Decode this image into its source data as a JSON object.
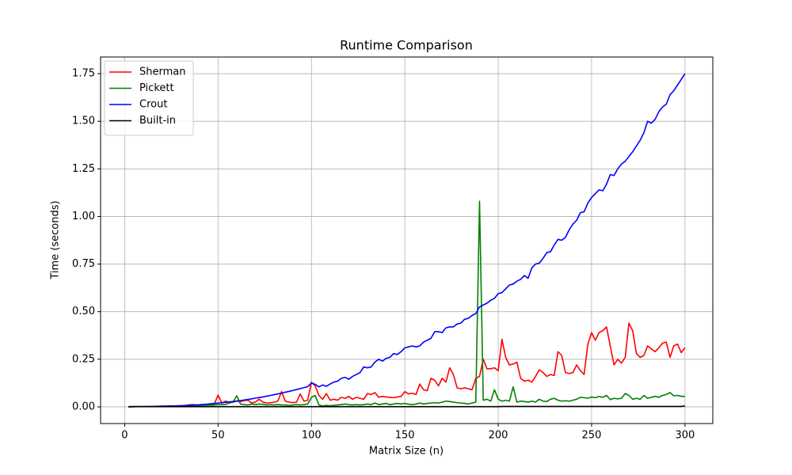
{
  "chart_data": {
    "type": "line",
    "title": "Runtime Comparison",
    "x_label": "Matrix Size (n)",
    "y_label": "Time (seconds)",
    "x": [
      2,
      4,
      6,
      8,
      10,
      12,
      14,
      16,
      18,
      20,
      22,
      24,
      26,
      28,
      30,
      32,
      34,
      36,
      38,
      40,
      42,
      44,
      46,
      48,
      50,
      52,
      54,
      56,
      58,
      60,
      62,
      64,
      66,
      68,
      70,
      72,
      74,
      76,
      78,
      80,
      82,
      84,
      86,
      88,
      90,
      92,
      94,
      96,
      98,
      100,
      102,
      104,
      106,
      108,
      110,
      112,
      114,
      116,
      118,
      120,
      122,
      124,
      126,
      128,
      130,
      132,
      134,
      136,
      138,
      140,
      142,
      144,
      146,
      148,
      150,
      152,
      154,
      156,
      158,
      160,
      162,
      164,
      166,
      168,
      170,
      172,
      174,
      176,
      178,
      180,
      182,
      184,
      186,
      188,
      190,
      192,
      194,
      196,
      198,
      200,
      202,
      204,
      206,
      208,
      210,
      212,
      214,
      216,
      218,
      220,
      222,
      224,
      226,
      228,
      230,
      232,
      234,
      236,
      238,
      240,
      242,
      244,
      246,
      248,
      250,
      252,
      254,
      256,
      258,
      260,
      262,
      264,
      266,
      268,
      270,
      272,
      274,
      276,
      278,
      280,
      282,
      284,
      286,
      288,
      290,
      292,
      294,
      296,
      298,
      300
    ],
    "series": [
      {
        "name": "Sherman",
        "color": "#ff0000",
        "values": [
          0.001,
          0.001,
          0.002,
          0.001,
          0.002,
          0.002,
          0.002,
          0.003,
          0.003,
          0.004,
          0.004,
          0.005,
          0.005,
          0.005,
          0.006,
          0.007,
          0.01,
          0.012,
          0.011,
          0.008,
          0.009,
          0.012,
          0.013,
          0.015,
          0.062,
          0.02,
          0.03,
          0.025,
          0.025,
          0.03,
          0.028,
          0.033,
          0.035,
          0.02,
          0.025,
          0.04,
          0.025,
          0.02,
          0.022,
          0.024,
          0.03,
          0.08,
          0.03,
          0.025,
          0.022,
          0.025,
          0.068,
          0.03,
          0.035,
          0.13,
          0.11,
          0.06,
          0.04,
          0.07,
          0.035,
          0.04,
          0.035,
          0.05,
          0.045,
          0.055,
          0.04,
          0.05,
          0.045,
          0.04,
          0.07,
          0.065,
          0.075,
          0.05,
          0.055,
          0.052,
          0.05,
          0.048,
          0.052,
          0.055,
          0.08,
          0.068,
          0.072,
          0.065,
          0.12,
          0.09,
          0.085,
          0.15,
          0.14,
          0.11,
          0.15,
          0.13,
          0.205,
          0.17,
          0.1,
          0.095,
          0.1,
          0.095,
          0.09,
          0.15,
          0.16,
          0.25,
          0.2,
          0.2,
          0.205,
          0.19,
          0.355,
          0.26,
          0.22,
          0.225,
          0.235,
          0.15,
          0.135,
          0.14,
          0.13,
          0.16,
          0.195,
          0.18,
          0.16,
          0.17,
          0.165,
          0.29,
          0.27,
          0.18,
          0.175,
          0.18,
          0.22,
          0.19,
          0.17,
          0.33,
          0.39,
          0.35,
          0.39,
          0.4,
          0.42,
          0.32,
          0.22,
          0.25,
          0.23,
          0.26,
          0.44,
          0.4,
          0.28,
          0.26,
          0.27,
          0.32,
          0.305,
          0.29,
          0.31,
          0.335,
          0.34,
          0.26,
          0.32,
          0.33,
          0.285,
          0.31
        ]
      },
      {
        "name": "Pickett",
        "color": "#008000",
        "values": [
          0.0,
          0.001,
          0.001,
          0.001,
          0.001,
          0.001,
          0.002,
          0.002,
          0.003,
          0.003,
          0.003,
          0.003,
          0.004,
          0.004,
          0.005,
          0.005,
          0.006,
          0.006,
          0.007,
          0.007,
          0.008,
          0.008,
          0.009,
          0.01,
          0.012,
          0.012,
          0.013,
          0.02,
          0.025,
          0.058,
          0.015,
          0.012,
          0.01,
          0.015,
          0.012,
          0.015,
          0.013,
          0.01,
          0.012,
          0.01,
          0.012,
          0.01,
          0.01,
          0.008,
          0.01,
          0.012,
          0.01,
          0.012,
          0.015,
          0.05,
          0.06,
          0.01,
          0.005,
          0.008,
          0.006,
          0.008,
          0.01,
          0.012,
          0.015,
          0.012,
          0.01,
          0.012,
          0.01,
          0.012,
          0.015,
          0.012,
          0.02,
          0.012,
          0.015,
          0.018,
          0.012,
          0.015,
          0.018,
          0.015,
          0.018,
          0.014,
          0.012,
          0.015,
          0.02,
          0.015,
          0.018,
          0.02,
          0.022,
          0.02,
          0.025,
          0.03,
          0.028,
          0.025,
          0.022,
          0.02,
          0.018,
          0.015,
          0.02,
          0.025,
          1.08,
          0.035,
          0.04,
          0.03,
          0.09,
          0.04,
          0.03,
          0.035,
          0.03,
          0.105,
          0.025,
          0.03,
          0.028,
          0.025,
          0.03,
          0.025,
          0.04,
          0.03,
          0.028,
          0.04,
          0.045,
          0.035,
          0.03,
          0.032,
          0.03,
          0.035,
          0.04,
          0.05,
          0.048,
          0.045,
          0.052,
          0.048,
          0.055,
          0.05,
          0.06,
          0.038,
          0.045,
          0.042,
          0.045,
          0.07,
          0.06,
          0.04,
          0.045,
          0.04,
          0.06,
          0.045,
          0.05,
          0.055,
          0.05,
          0.06,
          0.065,
          0.075,
          0.058,
          0.06,
          0.055,
          0.055
        ]
      },
      {
        "name": "Crout",
        "color": "#0000ff",
        "values": [
          0.0,
          0.0,
          0.001,
          0.001,
          0.001,
          0.001,
          0.002,
          0.002,
          0.002,
          0.003,
          0.003,
          0.004,
          0.004,
          0.005,
          0.006,
          0.007,
          0.008,
          0.009,
          0.01,
          0.011,
          0.013,
          0.014,
          0.016,
          0.018,
          0.02,
          0.022,
          0.024,
          0.026,
          0.028,
          0.031,
          0.033,
          0.036,
          0.039,
          0.042,
          0.046,
          0.049,
          0.052,
          0.056,
          0.06,
          0.064,
          0.068,
          0.072,
          0.077,
          0.081,
          0.086,
          0.091,
          0.096,
          0.101,
          0.106,
          0.125,
          0.118,
          0.105,
          0.115,
          0.108,
          0.12,
          0.13,
          0.135,
          0.15,
          0.155,
          0.145,
          0.16,
          0.17,
          0.18,
          0.21,
          0.205,
          0.21,
          0.235,
          0.25,
          0.24,
          0.255,
          0.26,
          0.28,
          0.275,
          0.29,
          0.31,
          0.315,
          0.32,
          0.315,
          0.32,
          0.34,
          0.35,
          0.36,
          0.395,
          0.395,
          0.39,
          0.415,
          0.42,
          0.42,
          0.435,
          0.44,
          0.46,
          0.465,
          0.48,
          0.49,
          0.525,
          0.535,
          0.545,
          0.56,
          0.57,
          0.595,
          0.6,
          0.62,
          0.64,
          0.645,
          0.66,
          0.67,
          0.69,
          0.675,
          0.73,
          0.75,
          0.755,
          0.78,
          0.81,
          0.815,
          0.85,
          0.88,
          0.875,
          0.89,
          0.93,
          0.96,
          0.98,
          1.02,
          1.025,
          1.07,
          1.1,
          1.12,
          1.14,
          1.135,
          1.17,
          1.22,
          1.215,
          1.25,
          1.275,
          1.29,
          1.315,
          1.34,
          1.37,
          1.4,
          1.44,
          1.5,
          1.49,
          1.51,
          1.55,
          1.575,
          1.59,
          1.64,
          1.66,
          1.69,
          1.72,
          1.75
        ]
      },
      {
        "name": "Built-in",
        "color": "#000000",
        "values": [
          0.001,
          0.001,
          0.001,
          0.001,
          0.001,
          0.001,
          0.001,
          0.001,
          0.001,
          0.001,
          0.001,
          0.001,
          0.001,
          0.001,
          0.001,
          0.001,
          0.001,
          0.001,
          0.001,
          0.001,
          0.001,
          0.001,
          0.001,
          0.001,
          0.001,
          0.001,
          0.001,
          0.001,
          0.001,
          0.001,
          0.001,
          0.001,
          0.001,
          0.001,
          0.001,
          0.001,
          0.001,
          0.001,
          0.001,
          0.001,
          0.001,
          0.001,
          0.001,
          0.001,
          0.001,
          0.001,
          0.001,
          0.001,
          0.001,
          0.001,
          0.001,
          0.001,
          0.001,
          0.001,
          0.001,
          0.001,
          0.001,
          0.001,
          0.001,
          0.001,
          0.001,
          0.001,
          0.001,
          0.001,
          0.001,
          0.001,
          0.001,
          0.001,
          0.001,
          0.001,
          0.001,
          0.001,
          0.001,
          0.001,
          0.001,
          0.001,
          0.001,
          0.001,
          0.001,
          0.001,
          0.001,
          0.001,
          0.001,
          0.001,
          0.001,
          0.001,
          0.001,
          0.001,
          0.001,
          0.001,
          0.001,
          0.001,
          0.001,
          0.001,
          0.001,
          0.001,
          0.001,
          0.001,
          0.001,
          0.001,
          0.002,
          0.002,
          0.002,
          0.002,
          0.002,
          0.002,
          0.002,
          0.002,
          0.002,
          0.002,
          0.002,
          0.002,
          0.002,
          0.002,
          0.002,
          0.002,
          0.002,
          0.002,
          0.002,
          0.002,
          0.002,
          0.002,
          0.002,
          0.002,
          0.002,
          0.002,
          0.002,
          0.002,
          0.002,
          0.002,
          0.002,
          0.002,
          0.002,
          0.002,
          0.002,
          0.002,
          0.002,
          0.002,
          0.002,
          0.002,
          0.002,
          0.002,
          0.002,
          0.002,
          0.002,
          0.002,
          0.002,
          0.002,
          0.002,
          0.005
        ]
      }
    ],
    "xlim": [
      -12.9,
      314.9
    ],
    "ylim": [
      -0.0876,
      1.8376
    ],
    "xticks": [
      0,
      50,
      100,
      150,
      200,
      250,
      300
    ],
    "yticks": [
      {
        "value": 0,
        "label": "0.00"
      },
      0.25,
      {
        "value": 0.5,
        "label": "0.50"
      },
      0.75,
      {
        "value": 1,
        "label": "1.00"
      },
      1.25,
      {
        "value": 1.5,
        "label": "1.50"
      },
      1.75
    ],
    "grid": true,
    "legend": "upper left"
  }
}
